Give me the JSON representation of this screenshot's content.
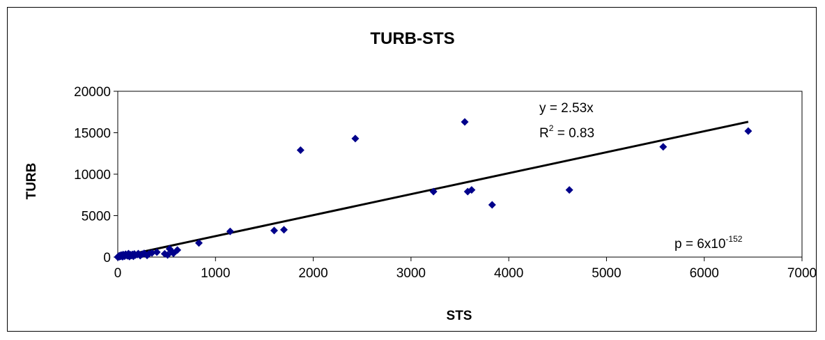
{
  "chart_data": {
    "type": "scatter",
    "title": "TURB-STS",
    "xlabel": "STS",
    "ylabel": "TURB",
    "xlim": [
      0,
      7000
    ],
    "ylim": [
      0,
      20000
    ],
    "xticks": [
      0,
      1000,
      2000,
      3000,
      4000,
      5000,
      6000,
      7000
    ],
    "yticks": [
      0,
      5000,
      10000,
      15000,
      20000
    ],
    "grid": false,
    "legend": "none",
    "marker_color": "#00008B",
    "series": [
      {
        "points": [
          [
            0,
            0
          ],
          [
            5,
            60
          ],
          [
            10,
            120
          ],
          [
            15,
            30
          ],
          [
            20,
            180
          ],
          [
            30,
            80
          ],
          [
            35,
            250
          ],
          [
            40,
            150
          ],
          [
            50,
            40
          ],
          [
            55,
            300
          ],
          [
            60,
            210
          ],
          [
            70,
            100
          ],
          [
            80,
            350
          ],
          [
            90,
            230
          ],
          [
            100,
            150
          ],
          [
            110,
            420
          ],
          [
            120,
            60
          ],
          [
            130,
            280
          ],
          [
            140,
            190
          ],
          [
            150,
            330
          ],
          [
            160,
            90
          ],
          [
            170,
            380
          ],
          [
            180,
            240
          ],
          [
            200,
            300
          ],
          [
            210,
            420
          ],
          [
            230,
            180
          ],
          [
            250,
            350
          ],
          [
            270,
            450
          ],
          [
            300,
            200
          ],
          [
            320,
            400
          ],
          [
            350,
            500
          ],
          [
            400,
            600
          ],
          [
            480,
            400
          ],
          [
            510,
            250
          ],
          [
            530,
            1000
          ],
          [
            550,
            700
          ],
          [
            570,
            450
          ],
          [
            610,
            850
          ],
          [
            830,
            1700
          ],
          [
            1150,
            3100
          ],
          [
            1600,
            3200
          ],
          [
            1700,
            3300
          ],
          [
            1870,
            12900
          ],
          [
            2430,
            14300
          ],
          [
            3230,
            7900
          ],
          [
            3550,
            16300
          ],
          [
            3580,
            7900
          ],
          [
            3620,
            8100
          ],
          [
            3830,
            6300
          ],
          [
            4620,
            8100
          ],
          [
            5580,
            13300
          ],
          [
            6450,
            15200
          ]
        ]
      }
    ],
    "trendline": {
      "slope": 2.53,
      "intercept": 0,
      "x_end": 6450
    },
    "annotations": {
      "equation": "y = 2.53x",
      "r2_prefix": "R",
      "r2_sup": "2",
      "r2_value": " = 0.83",
      "p_prefix": "p = 6x10",
      "p_sup": "-152"
    }
  }
}
